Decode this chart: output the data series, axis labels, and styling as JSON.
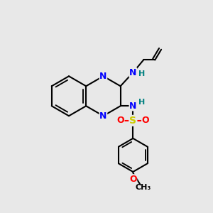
{
  "background_color": "#e8e8e8",
  "atom_colors": {
    "N": "#0000FF",
    "O": "#FF0000",
    "S": "#CCCC00",
    "C": "#000000",
    "H": "#008080"
  },
  "bond_color": "#000000",
  "bond_width": 1.5,
  "fig_width": 3.0,
  "fig_height": 3.0,
  "dpi": 100,
  "xlim": [
    0,
    10
  ],
  "ylim": [
    0,
    10
  ]
}
